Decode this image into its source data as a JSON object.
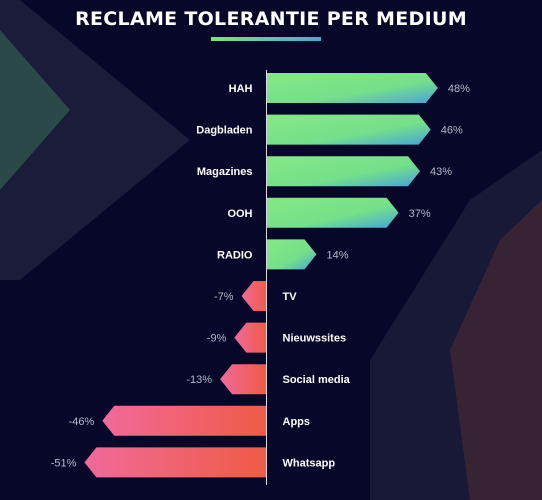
{
  "title": "RECLAME TOLERANTIE  PER MEDIUM",
  "colors": {
    "background": "#07072a",
    "positive_start": "#86e885",
    "positive_end": "#47a3d8",
    "negative_start": "#f06a9a",
    "negative_end": "#ef5b45",
    "label": "#ffffff",
    "value": "#b8b8c8",
    "axis": "#d8d8e0"
  },
  "chart_data": {
    "type": "bar",
    "orientation": "horizontal",
    "title": "RECLAME TOLERANTIE  PER MEDIUM",
    "xlabel": "",
    "ylabel": "",
    "xlim": [
      -51,
      48
    ],
    "grid": false,
    "categories": [
      "HAH",
      "Dagbladen",
      "Magazines",
      "OOH",
      "RADIO",
      "TV",
      "Nieuwssites",
      "Social media",
      "Apps",
      "Whatsapp"
    ],
    "values": [
      48,
      46,
      43,
      37,
      14,
      -7,
      -9,
      -13,
      -46,
      -51
    ],
    "value_labels": [
      "48%",
      "46%",
      "43%",
      "37%",
      "14%",
      "-7%",
      "-9%",
      "-13%",
      "-46%",
      "-51%"
    ]
  }
}
